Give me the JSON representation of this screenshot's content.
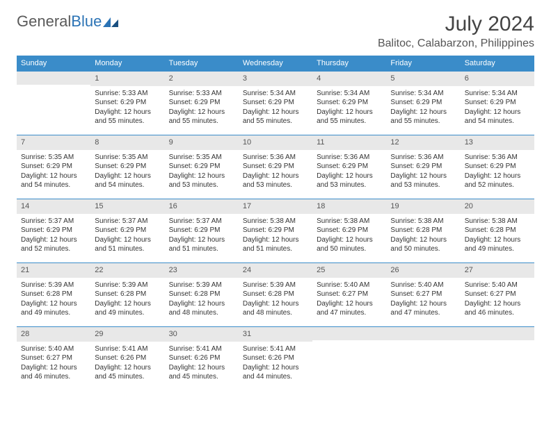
{
  "brand": {
    "general": "General",
    "blue": "Blue"
  },
  "title": "July 2024",
  "location": "Balitoc, Calabarzon, Philippines",
  "columns": [
    "Sunday",
    "Monday",
    "Tuesday",
    "Wednesday",
    "Thursday",
    "Friday",
    "Saturday"
  ],
  "colors": {
    "header_bg": "#3a8cc9",
    "header_text": "#ffffff",
    "daynum_bg": "#e8e8e8",
    "border": "#3a8cc9",
    "body_text": "#333333",
    "title_text": "#444444",
    "logo_gray": "#5a5a5a",
    "logo_blue": "#2b73b5"
  },
  "weeks": [
    [
      {
        "num": "",
        "sunrise": "",
        "sunset": "",
        "daylight": ""
      },
      {
        "num": "1",
        "sunrise": "Sunrise: 5:33 AM",
        "sunset": "Sunset: 6:29 PM",
        "daylight": "Daylight: 12 hours and 55 minutes."
      },
      {
        "num": "2",
        "sunrise": "Sunrise: 5:33 AM",
        "sunset": "Sunset: 6:29 PM",
        "daylight": "Daylight: 12 hours and 55 minutes."
      },
      {
        "num": "3",
        "sunrise": "Sunrise: 5:34 AM",
        "sunset": "Sunset: 6:29 PM",
        "daylight": "Daylight: 12 hours and 55 minutes."
      },
      {
        "num": "4",
        "sunrise": "Sunrise: 5:34 AM",
        "sunset": "Sunset: 6:29 PM",
        "daylight": "Daylight: 12 hours and 55 minutes."
      },
      {
        "num": "5",
        "sunrise": "Sunrise: 5:34 AM",
        "sunset": "Sunset: 6:29 PM",
        "daylight": "Daylight: 12 hours and 55 minutes."
      },
      {
        "num": "6",
        "sunrise": "Sunrise: 5:34 AM",
        "sunset": "Sunset: 6:29 PM",
        "daylight": "Daylight: 12 hours and 54 minutes."
      }
    ],
    [
      {
        "num": "7",
        "sunrise": "Sunrise: 5:35 AM",
        "sunset": "Sunset: 6:29 PM",
        "daylight": "Daylight: 12 hours and 54 minutes."
      },
      {
        "num": "8",
        "sunrise": "Sunrise: 5:35 AM",
        "sunset": "Sunset: 6:29 PM",
        "daylight": "Daylight: 12 hours and 54 minutes."
      },
      {
        "num": "9",
        "sunrise": "Sunrise: 5:35 AM",
        "sunset": "Sunset: 6:29 PM",
        "daylight": "Daylight: 12 hours and 53 minutes."
      },
      {
        "num": "10",
        "sunrise": "Sunrise: 5:36 AM",
        "sunset": "Sunset: 6:29 PM",
        "daylight": "Daylight: 12 hours and 53 minutes."
      },
      {
        "num": "11",
        "sunrise": "Sunrise: 5:36 AM",
        "sunset": "Sunset: 6:29 PM",
        "daylight": "Daylight: 12 hours and 53 minutes."
      },
      {
        "num": "12",
        "sunrise": "Sunrise: 5:36 AM",
        "sunset": "Sunset: 6:29 PM",
        "daylight": "Daylight: 12 hours and 53 minutes."
      },
      {
        "num": "13",
        "sunrise": "Sunrise: 5:36 AM",
        "sunset": "Sunset: 6:29 PM",
        "daylight": "Daylight: 12 hours and 52 minutes."
      }
    ],
    [
      {
        "num": "14",
        "sunrise": "Sunrise: 5:37 AM",
        "sunset": "Sunset: 6:29 PM",
        "daylight": "Daylight: 12 hours and 52 minutes."
      },
      {
        "num": "15",
        "sunrise": "Sunrise: 5:37 AM",
        "sunset": "Sunset: 6:29 PM",
        "daylight": "Daylight: 12 hours and 51 minutes."
      },
      {
        "num": "16",
        "sunrise": "Sunrise: 5:37 AM",
        "sunset": "Sunset: 6:29 PM",
        "daylight": "Daylight: 12 hours and 51 minutes."
      },
      {
        "num": "17",
        "sunrise": "Sunrise: 5:38 AM",
        "sunset": "Sunset: 6:29 PM",
        "daylight": "Daylight: 12 hours and 51 minutes."
      },
      {
        "num": "18",
        "sunrise": "Sunrise: 5:38 AM",
        "sunset": "Sunset: 6:29 PM",
        "daylight": "Daylight: 12 hours and 50 minutes."
      },
      {
        "num": "19",
        "sunrise": "Sunrise: 5:38 AM",
        "sunset": "Sunset: 6:28 PM",
        "daylight": "Daylight: 12 hours and 50 minutes."
      },
      {
        "num": "20",
        "sunrise": "Sunrise: 5:38 AM",
        "sunset": "Sunset: 6:28 PM",
        "daylight": "Daylight: 12 hours and 49 minutes."
      }
    ],
    [
      {
        "num": "21",
        "sunrise": "Sunrise: 5:39 AM",
        "sunset": "Sunset: 6:28 PM",
        "daylight": "Daylight: 12 hours and 49 minutes."
      },
      {
        "num": "22",
        "sunrise": "Sunrise: 5:39 AM",
        "sunset": "Sunset: 6:28 PM",
        "daylight": "Daylight: 12 hours and 49 minutes."
      },
      {
        "num": "23",
        "sunrise": "Sunrise: 5:39 AM",
        "sunset": "Sunset: 6:28 PM",
        "daylight": "Daylight: 12 hours and 48 minutes."
      },
      {
        "num": "24",
        "sunrise": "Sunrise: 5:39 AM",
        "sunset": "Sunset: 6:28 PM",
        "daylight": "Daylight: 12 hours and 48 minutes."
      },
      {
        "num": "25",
        "sunrise": "Sunrise: 5:40 AM",
        "sunset": "Sunset: 6:27 PM",
        "daylight": "Daylight: 12 hours and 47 minutes."
      },
      {
        "num": "26",
        "sunrise": "Sunrise: 5:40 AM",
        "sunset": "Sunset: 6:27 PM",
        "daylight": "Daylight: 12 hours and 47 minutes."
      },
      {
        "num": "27",
        "sunrise": "Sunrise: 5:40 AM",
        "sunset": "Sunset: 6:27 PM",
        "daylight": "Daylight: 12 hours and 46 minutes."
      }
    ],
    [
      {
        "num": "28",
        "sunrise": "Sunrise: 5:40 AM",
        "sunset": "Sunset: 6:27 PM",
        "daylight": "Daylight: 12 hours and 46 minutes."
      },
      {
        "num": "29",
        "sunrise": "Sunrise: 5:41 AM",
        "sunset": "Sunset: 6:26 PM",
        "daylight": "Daylight: 12 hours and 45 minutes."
      },
      {
        "num": "30",
        "sunrise": "Sunrise: 5:41 AM",
        "sunset": "Sunset: 6:26 PM",
        "daylight": "Daylight: 12 hours and 45 minutes."
      },
      {
        "num": "31",
        "sunrise": "Sunrise: 5:41 AM",
        "sunset": "Sunset: 6:26 PM",
        "daylight": "Daylight: 12 hours and 44 minutes."
      },
      {
        "num": "",
        "sunrise": "",
        "sunset": "",
        "daylight": ""
      },
      {
        "num": "",
        "sunrise": "",
        "sunset": "",
        "daylight": ""
      },
      {
        "num": "",
        "sunrise": "",
        "sunset": "",
        "daylight": ""
      }
    ]
  ]
}
